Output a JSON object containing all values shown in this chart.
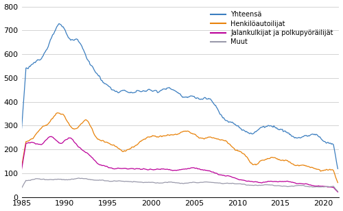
{
  "legend": [
    "Yhteensä",
    "Henkilöautoilijat",
    "Jalankulkijat ja polkupyöräilijät",
    "Muut"
  ],
  "colors": [
    "#3a7dbf",
    "#e8820a",
    "#bb0099",
    "#9999aa"
  ],
  "ylim": [
    0,
    800
  ],
  "yticks": [
    0,
    100,
    200,
    300,
    400,
    500,
    600,
    700,
    800
  ],
  "xlim_start": 1985.0,
  "xlim_end": 2021.83,
  "xticks": [
    1985,
    1990,
    1995,
    2000,
    2005,
    2010,
    2015,
    2020
  ],
  "linewidth": 0.9,
  "background_color": "#ffffff",
  "grid_color": "#cccccc"
}
